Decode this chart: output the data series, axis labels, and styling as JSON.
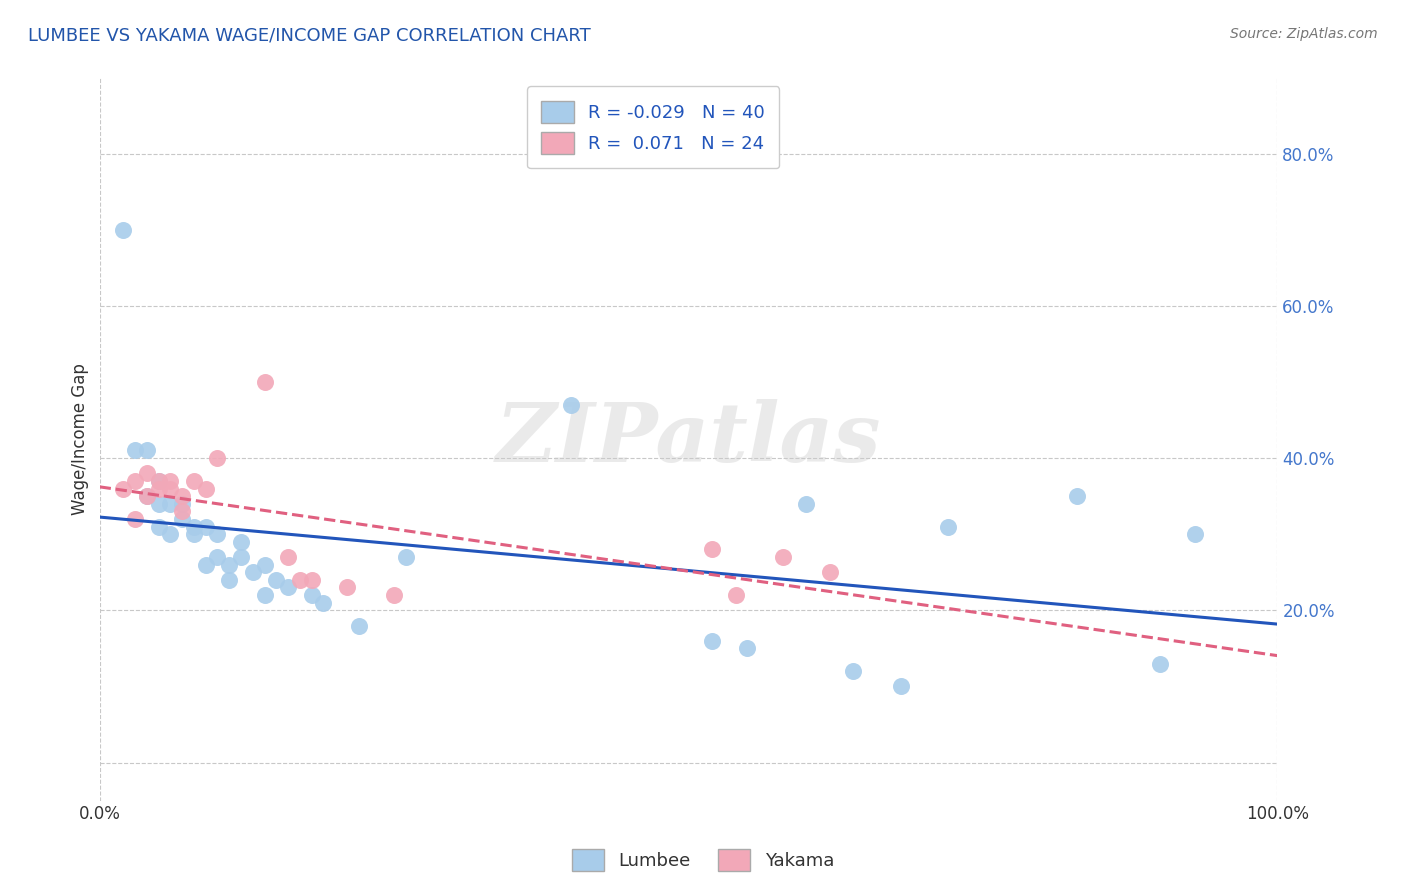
{
  "title": "LUMBEE VS YAKAMA WAGE/INCOME GAP CORRELATION CHART",
  "source_text": "Source: ZipAtlas.com",
  "ylabel": "Wage/Income Gap",
  "xlim": [
    0.0,
    1.0
  ],
  "ylim": [
    -0.05,
    0.9
  ],
  "xtick_positions": [
    0.0,
    0.25,
    0.5,
    0.75,
    1.0
  ],
  "xticklabels": [
    "0.0%",
    "",
    "",
    "",
    "100.0%"
  ],
  "ytick_positions": [
    0.0,
    0.2,
    0.4,
    0.6,
    0.8
  ],
  "yticklabels": [
    "",
    "20.0%",
    "40.0%",
    "60.0%",
    "80.0%"
  ],
  "lumbee_R": -0.029,
  "lumbee_N": 40,
  "yakama_R": 0.071,
  "yakama_N": 24,
  "lumbee_color": "#A8CCEA",
  "yakama_color": "#F2A8B8",
  "lumbee_line_color": "#2255BB",
  "yakama_line_color": "#E06080",
  "background_color": "#FFFFFF",
  "grid_color": "#C8C8C8",
  "title_color": "#2255AA",
  "watermark_text": "ZIPatlas",
  "lumbee_x": [
    0.02,
    0.03,
    0.04,
    0.04,
    0.05,
    0.05,
    0.05,
    0.06,
    0.06,
    0.07,
    0.07,
    0.08,
    0.08,
    0.09,
    0.09,
    0.1,
    0.1,
    0.11,
    0.11,
    0.12,
    0.12,
    0.13,
    0.14,
    0.14,
    0.15,
    0.16,
    0.18,
    0.19,
    0.22,
    0.26,
    0.4,
    0.52,
    0.55,
    0.6,
    0.64,
    0.68,
    0.72,
    0.83,
    0.9,
    0.93
  ],
  "lumbee_y": [
    0.7,
    0.41,
    0.41,
    0.35,
    0.37,
    0.34,
    0.31,
    0.34,
    0.3,
    0.34,
    0.32,
    0.3,
    0.31,
    0.31,
    0.26,
    0.3,
    0.27,
    0.26,
    0.24,
    0.29,
    0.27,
    0.25,
    0.26,
    0.22,
    0.24,
    0.23,
    0.22,
    0.21,
    0.18,
    0.27,
    0.47,
    0.16,
    0.15,
    0.34,
    0.12,
    0.1,
    0.31,
    0.35,
    0.13,
    0.3
  ],
  "yakama_x": [
    0.02,
    0.03,
    0.03,
    0.04,
    0.04,
    0.05,
    0.05,
    0.06,
    0.06,
    0.07,
    0.07,
    0.08,
    0.09,
    0.1,
    0.14,
    0.16,
    0.17,
    0.18,
    0.21,
    0.25,
    0.52,
    0.54,
    0.58,
    0.62
  ],
  "yakama_y": [
    0.36,
    0.37,
    0.32,
    0.38,
    0.35,
    0.37,
    0.36,
    0.37,
    0.36,
    0.35,
    0.33,
    0.37,
    0.36,
    0.4,
    0.5,
    0.27,
    0.24,
    0.24,
    0.23,
    0.22,
    0.28,
    0.22,
    0.27,
    0.25
  ]
}
